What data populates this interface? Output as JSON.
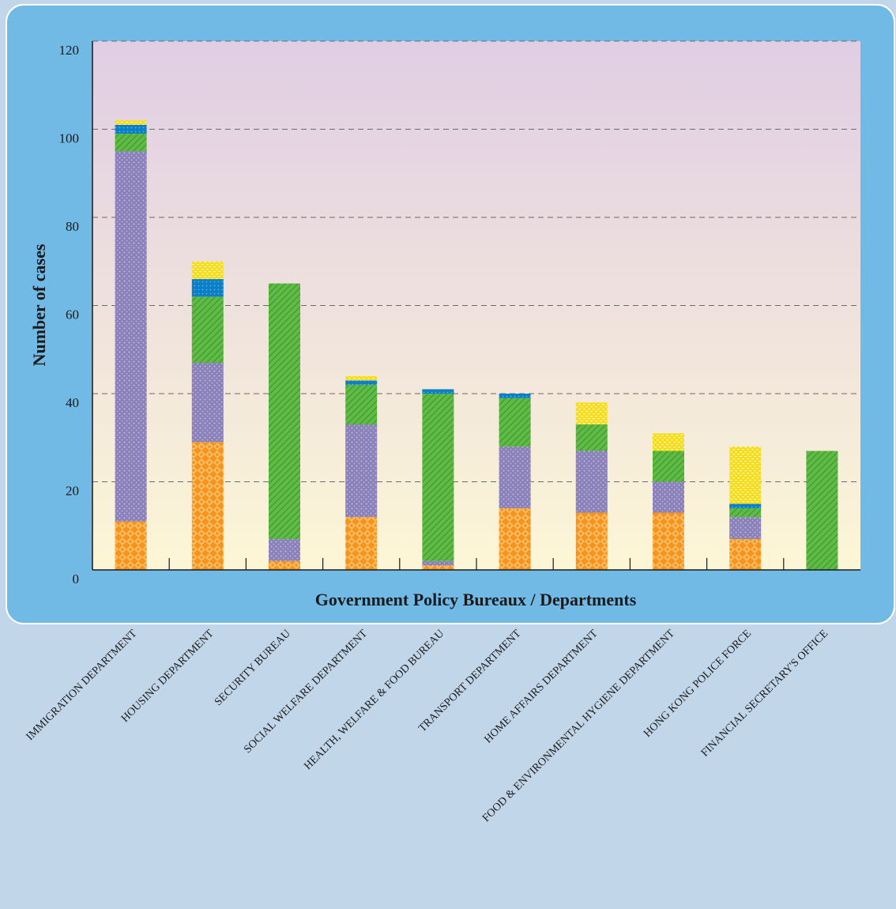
{
  "colors": {
    "page_bg": "#c2d6ea",
    "panel_bg": "#72bae6",
    "plot_top": "#e0cde4",
    "plot_bottom": "#fdf6d6",
    "grid": "#6a6a6a",
    "axis": "#1a1a1a",
    "text": "#1a1a1a"
  },
  "chart_data": {
    "type": "bar",
    "stacked": true,
    "xlabel": "Government Policy Bureaux / Departments",
    "ylabel": "Number of cases",
    "ylim": [
      0,
      120
    ],
    "yticks": [
      0,
      20,
      40,
      60,
      80,
      100,
      120
    ],
    "grid": "horizontal dashed",
    "categories": [
      "IMMIGRATION DEPARTMENT",
      "HOUSING DEPARTMENT",
      "SECURITY BUREAU",
      "SOCIAL WELFARE DEPARTMENT",
      "HEALTH, WELFARE & FOOD BUREAU",
      "TRANSPORT DEPARTMENT",
      "HOME AFFAIRS DEPARTMENT",
      "FOOD & ENVIRONMENTAL HYGIENE DEPARTMENT",
      "HONG KONG POLICE FORCE",
      "FINANCIAL SECRETARY'S OFFICE"
    ],
    "series": [
      {
        "color": "#f7941d",
        "pattern": "diamond-orange",
        "values": [
          11,
          29,
          2,
          12,
          1,
          14,
          13,
          13,
          7,
          0
        ]
      },
      {
        "color": "#8e84be",
        "pattern": "dots-purple",
        "values": [
          84,
          18,
          5,
          21,
          1,
          14,
          14,
          7,
          5,
          0
        ]
      },
      {
        "color": "#5fba46",
        "pattern": "hatch-green",
        "values": [
          4,
          15,
          58,
          9,
          38,
          11,
          6,
          7,
          2,
          27
        ]
      },
      {
        "color": "#0a7fc6",
        "pattern": "dots-blue",
        "values": [
          2,
          4,
          0,
          1,
          1,
          1,
          0,
          0,
          1,
          0
        ]
      },
      {
        "color": "#f5dc1e",
        "pattern": "dash-yellow",
        "values": [
          1,
          4,
          0,
          1,
          0,
          0,
          5,
          4,
          13,
          0
        ]
      }
    ]
  }
}
